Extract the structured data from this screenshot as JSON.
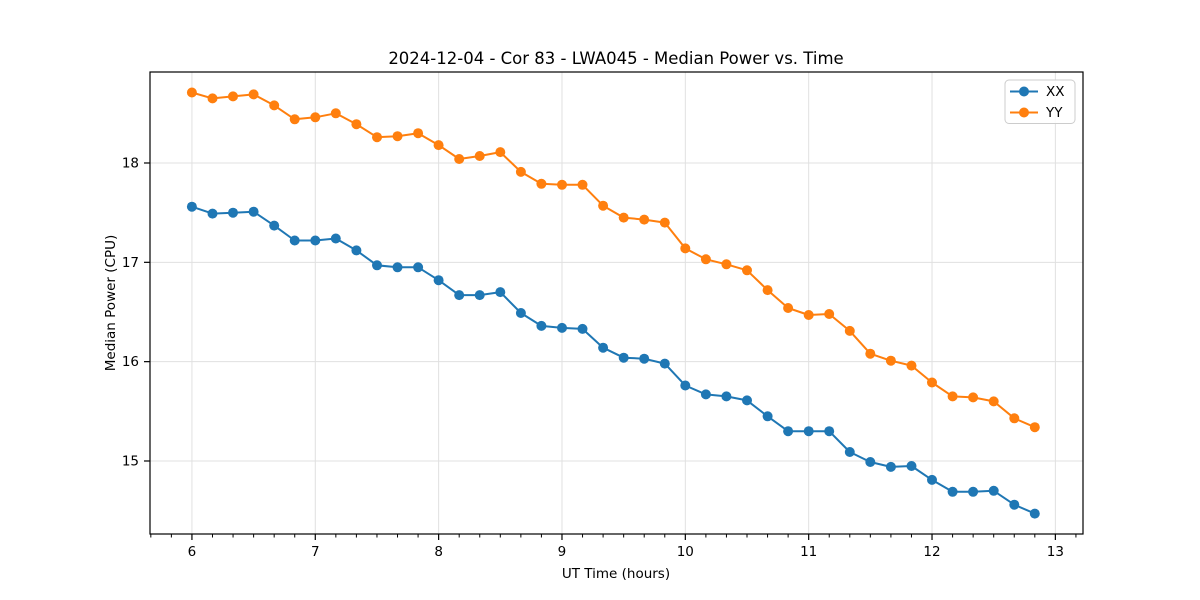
{
  "window": {
    "background_color": "#ffffff"
  },
  "chart_data": {
    "type": "line",
    "title": "2024-12-04 - Cor 83 - LWA045 - Median Power vs. Time",
    "xlabel": "UT Time (hours)",
    "ylabel": "Median Power (CPU)",
    "grid": true,
    "legend_position": "upper right",
    "xlim": [
      5.66,
      13.224
    ],
    "ylim": [
      14.265,
      18.916
    ],
    "x_ticks": [
      6,
      7,
      8,
      9,
      10,
      11,
      12,
      13
    ],
    "y_ticks": [
      15,
      16,
      17,
      18
    ],
    "x_minor_tick_step": 0.16667,
    "x": [
      6.0,
      6.1667,
      6.3333,
      6.5,
      6.6667,
      6.8333,
      7.0,
      7.1667,
      7.3333,
      7.5,
      7.6667,
      7.8333,
      8.0,
      8.1667,
      8.3333,
      8.5,
      8.6667,
      8.8333,
      9.0,
      9.1667,
      9.3333,
      9.5,
      9.6667,
      9.8333,
      10.0,
      10.1667,
      10.3333,
      10.5,
      10.6667,
      10.8333,
      11.0,
      11.1667,
      11.3333,
      11.5,
      11.6667,
      11.8333,
      12.0,
      12.1667,
      12.3333,
      12.5,
      12.6667,
      12.8333
    ],
    "series": [
      {
        "name": "XX",
        "color": "#1f77b4",
        "values": [
          17.56,
          17.49,
          17.5,
          17.51,
          17.37,
          17.22,
          17.22,
          17.24,
          17.12,
          16.97,
          16.95,
          16.95,
          16.82,
          16.67,
          16.67,
          16.7,
          16.49,
          16.36,
          16.34,
          16.33,
          16.14,
          16.04,
          16.03,
          15.98,
          15.76,
          15.67,
          15.65,
          15.61,
          15.45,
          15.3,
          15.3,
          15.3,
          15.09,
          14.99,
          14.94,
          14.95,
          14.81,
          14.69,
          14.69,
          14.7,
          14.56,
          14.47
        ]
      },
      {
        "name": "YY",
        "color": "#ff7f0e",
        "values": [
          18.71,
          18.65,
          18.67,
          18.69,
          18.58,
          18.44,
          18.46,
          18.5,
          18.39,
          18.26,
          18.27,
          18.3,
          18.18,
          18.04,
          18.07,
          18.11,
          17.91,
          17.79,
          17.78,
          17.78,
          17.57,
          17.45,
          17.43,
          17.4,
          17.14,
          17.03,
          16.98,
          16.92,
          16.72,
          16.54,
          16.47,
          16.48,
          16.31,
          16.08,
          16.01,
          15.96,
          15.79,
          15.65,
          15.64,
          15.6,
          15.43,
          15.34
        ]
      }
    ],
    "style": {
      "grid_color": "#e0e0e0",
      "spine_color": "#000000",
      "marker_radius": 5,
      "line_width": 2,
      "legend_border_color": "#cccccc"
    }
  }
}
